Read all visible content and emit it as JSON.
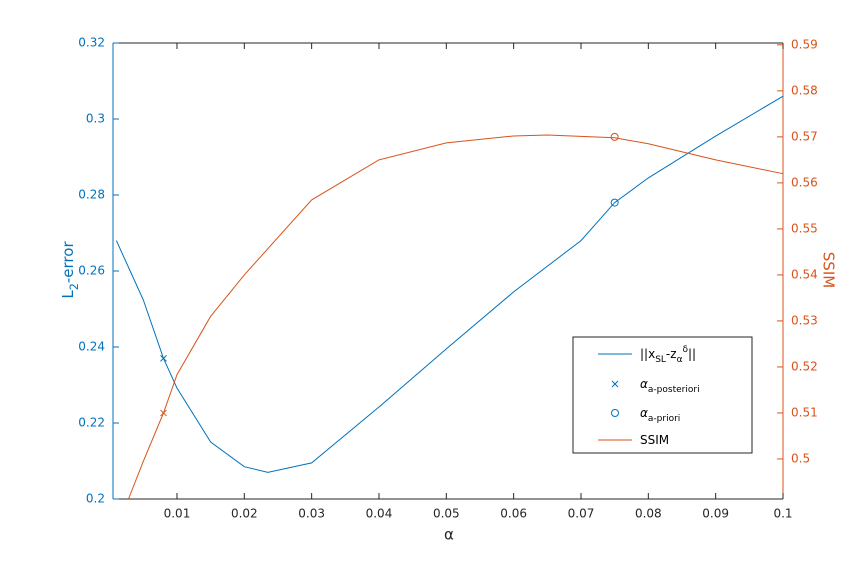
{
  "chart_data": {
    "type": "line",
    "xlabel": "α",
    "ylabel": [
      "L",
      "2",
      "-error"
    ],
    "y2label": "SSIM",
    "xlim": [
      0.0005,
      0.1
    ],
    "xticks": [
      0.01,
      0.02,
      0.03,
      0.04,
      0.05,
      0.06,
      0.07,
      0.08,
      0.09,
      0.1
    ],
    "ylim": [
      0.2,
      0.32
    ],
    "yticks": [
      0.2,
      0.22,
      0.24,
      0.26,
      0.28,
      0.3,
      0.32
    ],
    "y2lim": [
      0.4913,
      0.5904
    ],
    "y2ticks": [
      0.5,
      0.51,
      0.52,
      0.53,
      0.54,
      0.55,
      0.56,
      0.57,
      0.58,
      0.59
    ],
    "y_color": "#0072BD",
    "y2_color": "#D95319",
    "series": [
      {
        "name": [
          "||x",
          "SL",
          "-z",
          "α",
          "δ",
          "||"
        ],
        "color": "#0072BD",
        "marker": "line",
        "x": [
          0.001,
          0.005,
          0.008,
          0.01,
          0.015,
          0.02,
          0.0235,
          0.03,
          0.04,
          0.05,
          0.06,
          0.07,
          0.075,
          0.08,
          0.09,
          0.1
        ],
        "values": [
          0.268,
          0.2524,
          0.237,
          0.2292,
          0.215,
          0.2085,
          0.207,
          0.2095,
          0.2242,
          0.2395,
          0.2545,
          0.268,
          0.278,
          0.2845,
          0.2955,
          0.306
        ]
      },
      {
        "name": [
          "α",
          "a-posteriori"
        ],
        "color": "#0072BD",
        "marker": "x",
        "x": [
          0.008
        ],
        "values": [
          0.237
        ]
      },
      {
        "name": [
          "α",
          "a-priori"
        ],
        "color": "#0072BD",
        "marker": "o",
        "x": [
          0.075
        ],
        "values": [
          0.278
        ]
      },
      {
        "name": [
          "SSIM"
        ],
        "color": "#D95319",
        "marker": "line",
        "axis": "y2",
        "x": [
          0.0028,
          0.005,
          0.008,
          0.01,
          0.015,
          0.02,
          0.03,
          0.04,
          0.05,
          0.06,
          0.065,
          0.075,
          0.08,
          0.09,
          0.1
        ],
        "values": [
          0.4913,
          0.4995,
          0.51,
          0.5183,
          0.531,
          0.54,
          0.5563,
          0.565,
          0.5687,
          0.5702,
          0.5704,
          0.5698,
          0.5685,
          0.565,
          0.562
        ]
      },
      {
        "color": "#D95319",
        "marker": "x",
        "axis": "y2",
        "x": [
          0.008
        ],
        "values": [
          0.51
        ]
      },
      {
        "color": "#D95319",
        "marker": "o",
        "axis": "y2",
        "x": [
          0.075
        ],
        "values": [
          0.57
        ]
      }
    ]
  }
}
